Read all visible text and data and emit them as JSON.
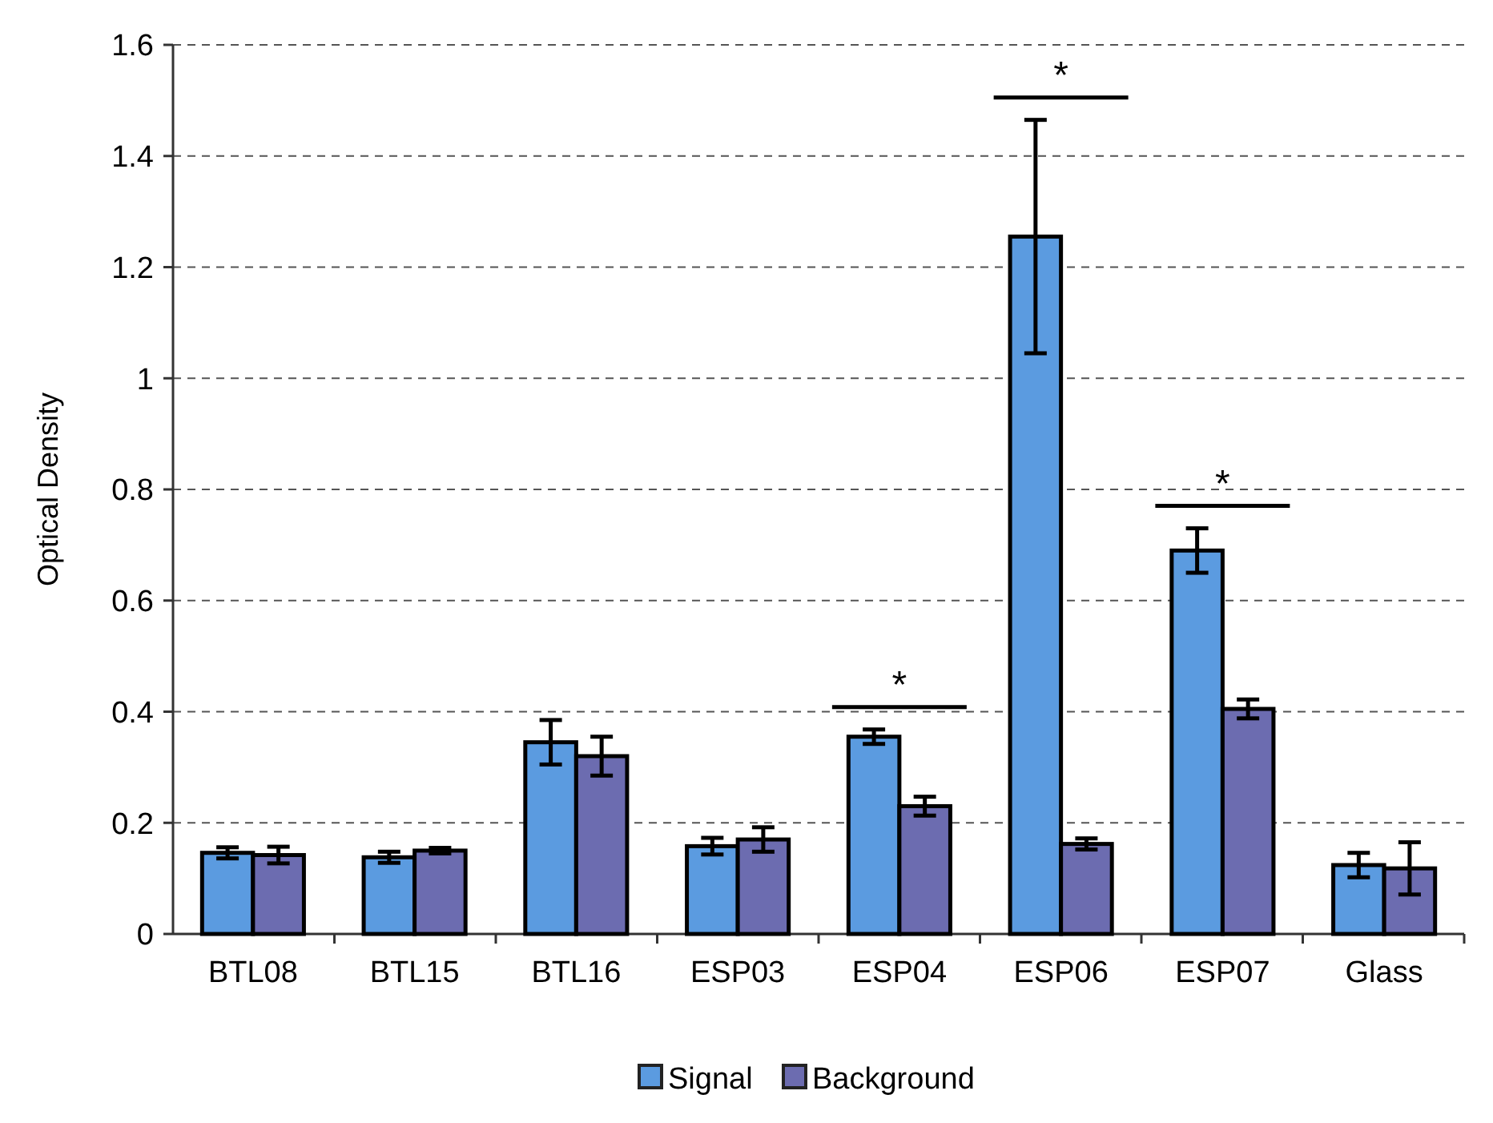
{
  "chart_data": {
    "type": "bar",
    "ylabel": "Optical Density",
    "categories": [
      "BTL08",
      "BTL15",
      "BTL16",
      "ESP03",
      "ESP04",
      "ESP06",
      "ESP07",
      "Glass"
    ],
    "series": [
      {
        "name": "Signal",
        "color": "#5b9be0",
        "values": [
          0.146,
          0.138,
          0.345,
          0.158,
          0.355,
          1.255,
          0.69,
          0.124
        ],
        "errors": [
          0.01,
          0.01,
          0.04,
          0.015,
          0.013,
          0.21,
          0.04,
          0.022
        ]
      },
      {
        "name": "Background",
        "color": "#6c6cb0",
        "values": [
          0.142,
          0.15,
          0.32,
          0.17,
          0.23,
          0.162,
          0.405,
          0.118
        ],
        "errors": [
          0.015,
          0.005,
          0.035,
          0.022,
          0.017,
          0.01,
          0.017,
          0.047
        ]
      }
    ],
    "ylim": [
      0,
      1.6
    ],
    "yticks": [
      0,
      0.2,
      0.4,
      0.6,
      0.8,
      1,
      1.2,
      1.4,
      1.6
    ],
    "grid": "y",
    "legend": "bottom",
    "annotations": [
      "*",
      "*",
      "*"
    ]
  }
}
